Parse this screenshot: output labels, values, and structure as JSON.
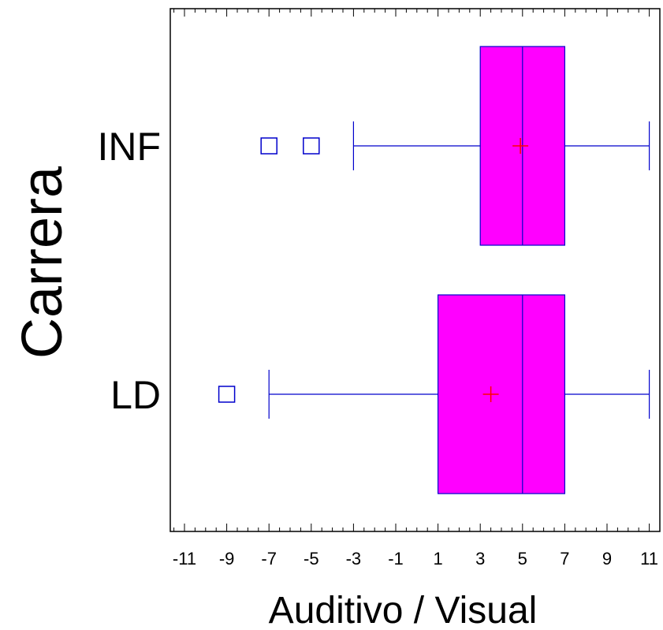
{
  "chart_data": {
    "type": "boxplot",
    "orientation": "horizontal",
    "xlabel": "Auditivo / Visual",
    "ylabel": "Carrera",
    "xlim": [
      -12,
      12
    ],
    "x_ticks": [
      -11,
      -9,
      -7,
      -5,
      -3,
      -1,
      1,
      3,
      5,
      7,
      9,
      11
    ],
    "grid": false,
    "categories": [
      "INF",
      "LD"
    ],
    "series": [
      {
        "category": "INF",
        "whisker_low": -3,
        "q1": 3,
        "median": 5,
        "q3": 7,
        "whisker_high": 11,
        "mean": 4.9,
        "outliers": [
          -7,
          -5
        ]
      },
      {
        "category": "LD",
        "whisker_low": -7,
        "q1": 1,
        "median": 5,
        "q3": 7,
        "whisker_high": 11,
        "mean": 3.5,
        "outliers": [
          -9
        ]
      }
    ],
    "colors": {
      "box_fill": "#ff00ff",
      "box_stroke": "#0000cc",
      "mean_marker": "#ff0000",
      "outlier": "#0000cc"
    }
  }
}
